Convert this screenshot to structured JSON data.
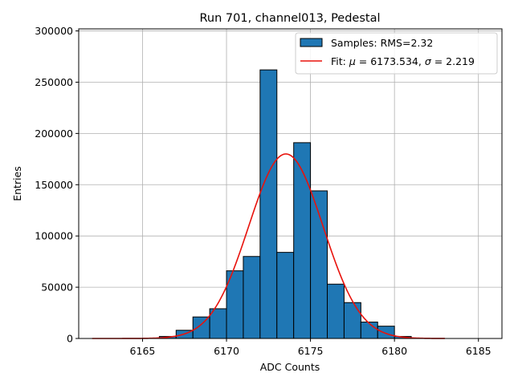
{
  "chart_data": {
    "type": "bar",
    "title": "Run 701, channel013, Pedestal",
    "xlabel": "ADC Counts",
    "ylabel": "Entries",
    "xlim": [
      6161.2,
      6186.4
    ],
    "ylim": [
      0,
      302000
    ],
    "xticks": [
      6165,
      6170,
      6175,
      6180,
      6185
    ],
    "yticks": [
      0,
      50000,
      100000,
      150000,
      200000,
      250000,
      300000
    ],
    "grid": true,
    "legend_position": "top-right",
    "bin_width": 1,
    "histogram": {
      "name": "Samples: RMS=2.32",
      "color": "#1f77b4",
      "bins": [
        {
          "start": 6166,
          "value": 2000
        },
        {
          "start": 6167,
          "value": 8000
        },
        {
          "start": 6168,
          "value": 21000
        },
        {
          "start": 6169,
          "value": 29000
        },
        {
          "start": 6170,
          "value": 66000
        },
        {
          "start": 6171,
          "value": 80000
        },
        {
          "start": 6172,
          "value": 262000
        },
        {
          "start": 6173,
          "value": 84000
        },
        {
          "start": 6174,
          "value": 191000
        },
        {
          "start": 6175,
          "value": 144000
        },
        {
          "start": 6176,
          "value": 53000
        },
        {
          "start": 6177,
          "value": 35000
        },
        {
          "start": 6178,
          "value": 16000
        },
        {
          "start": 6179,
          "value": 12000
        },
        {
          "start": 6180,
          "value": 2000
        }
      ]
    },
    "fit": {
      "name": "Fit: μ = 6173.534, σ = 2.219",
      "name_parts": [
        "Fit: ",
        "μ",
        " = 6173.534, ",
        "σ",
        " = 2.219"
      ],
      "color": "#e8120c",
      "mu": 6173.534,
      "sigma": 2.219,
      "amplitude": 180000,
      "x_range": [
        6162,
        6183
      ]
    }
  }
}
